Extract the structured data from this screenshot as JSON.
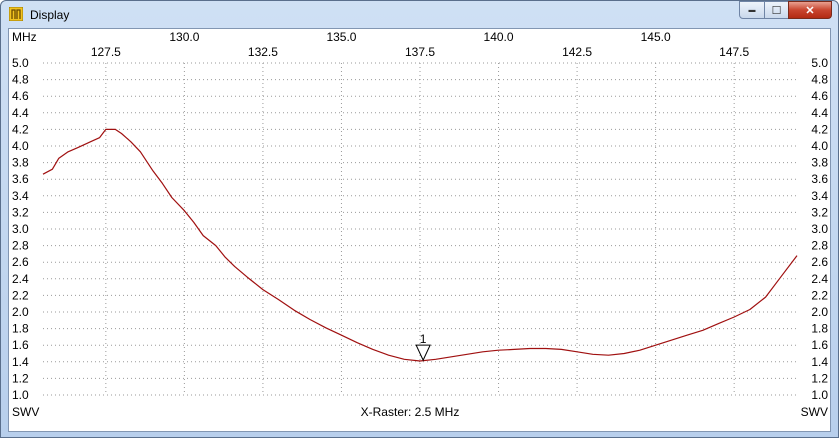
{
  "window": {
    "title": "Display",
    "minimize_glyph": "▬",
    "maximize_glyph": "☐",
    "close_glyph": "✕",
    "icon": "app-icon"
  },
  "chart_data": {
    "type": "line",
    "x_unit_label": "MHz",
    "y_label_left": "SWV",
    "y_label_right": "SWV",
    "footer": "X-Raster: 2.5 MHz",
    "xlim": [
      125.5,
      149.5
    ],
    "ylim": [
      1.0,
      5.0
    ],
    "y_ticks": [
      1.0,
      1.2,
      1.4,
      1.6,
      1.8,
      2.0,
      2.2,
      2.4,
      2.6,
      2.8,
      3.0,
      3.2,
      3.4,
      3.6,
      3.8,
      4.0,
      4.2,
      4.4,
      4.6,
      4.8,
      5.0
    ],
    "y_tick_labels": [
      "1.0",
      "1.2",
      "1.4",
      "1.6",
      "1.8",
      "2.0",
      "2.2",
      "2.4",
      "2.6",
      "2.8",
      "3.0",
      "3.2",
      "3.4",
      "3.6",
      "3.8",
      "4.0",
      "4.2",
      "4.4",
      "4.6",
      "4.8",
      "5.0"
    ],
    "x_ticks_top": [
      130.0,
      135.0,
      140.0,
      145.0
    ],
    "x_tick_labels_top": [
      "130.0",
      "135.0",
      "140.0",
      "145.0"
    ],
    "x_ticks_bottom": [
      127.5,
      132.5,
      137.5,
      142.5,
      147.5
    ],
    "x_tick_labels_bottom": [
      "127.5",
      "132.5",
      "137.5",
      "142.5",
      "147.5"
    ],
    "grid": true,
    "line_color": "#a01010",
    "series": [
      {
        "x": [
          125.5,
          125.8,
          126.0,
          126.3,
          126.6,
          127.0,
          127.3,
          127.5,
          127.8,
          128.0,
          128.3,
          128.6,
          129.0,
          129.3,
          129.6,
          130.0,
          130.3,
          130.6,
          131.0,
          131.3,
          131.6,
          132.0,
          132.5,
          133.0,
          133.5,
          134.0,
          134.5,
          135.0,
          135.5,
          136.0,
          136.5,
          137.0,
          137.5,
          138.0,
          138.5,
          139.0,
          139.5,
          140.0,
          140.5,
          141.0,
          141.5,
          142.0,
          142.5,
          143.0,
          143.5,
          144.0,
          144.5,
          145.0,
          145.5,
          146.0,
          146.5,
          147.0,
          147.5,
          148.0,
          148.5,
          149.0,
          149.5
        ],
        "y": [
          3.66,
          3.72,
          3.85,
          3.93,
          3.98,
          4.05,
          4.1,
          4.2,
          4.2,
          4.15,
          4.05,
          3.93,
          3.7,
          3.55,
          3.38,
          3.22,
          3.08,
          2.92,
          2.8,
          2.66,
          2.55,
          2.42,
          2.27,
          2.15,
          2.02,
          1.91,
          1.81,
          1.72,
          1.63,
          1.55,
          1.48,
          1.43,
          1.41,
          1.43,
          1.46,
          1.49,
          1.52,
          1.54,
          1.55,
          1.56,
          1.56,
          1.55,
          1.52,
          1.49,
          1.48,
          1.5,
          1.54,
          1.6,
          1.66,
          1.72,
          1.78,
          1.86,
          1.94,
          2.03,
          2.18,
          2.43,
          2.68
        ]
      }
    ],
    "marker": {
      "label": "1",
      "x": 137.6,
      "y": 1.42
    }
  }
}
